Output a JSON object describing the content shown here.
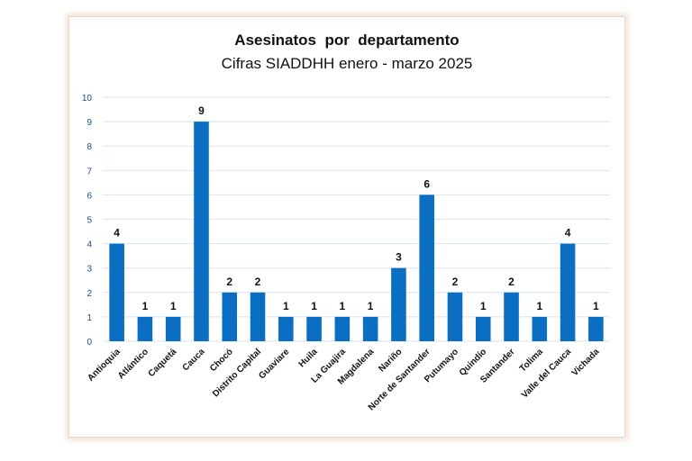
{
  "chart_data": {
    "type": "bar",
    "title": "Asesinatos  por  departamento",
    "subtitle": "Cifras SIADDHH enero - marzo 2025",
    "categories": [
      "Antioquia",
      "Atlántico",
      "Caquetá",
      "Cauca",
      "Chocó",
      "Distrito Capital",
      "Guaviare",
      "Huila",
      "La Guajira",
      "Magdalena",
      "Nariño",
      "Norte de Santander",
      "Putumayo",
      "Quindío",
      "Santander",
      "Tolima",
      "Valle del Cauca",
      "Vichada"
    ],
    "values": [
      4,
      1,
      1,
      9,
      2,
      2,
      1,
      1,
      1,
      1,
      3,
      6,
      2,
      1,
      2,
      1,
      4,
      1
    ],
    "yticks": [
      "0",
      "1",
      "2",
      "3",
      "4",
      "5",
      "6",
      "7",
      "8",
      "9",
      "10"
    ],
    "ylim": [
      0,
      10
    ],
    "xlabel": "",
    "ylabel": "",
    "grid": true,
    "bar_color": "#0a6fc2",
    "grid_color": "#d9e2ef"
  }
}
